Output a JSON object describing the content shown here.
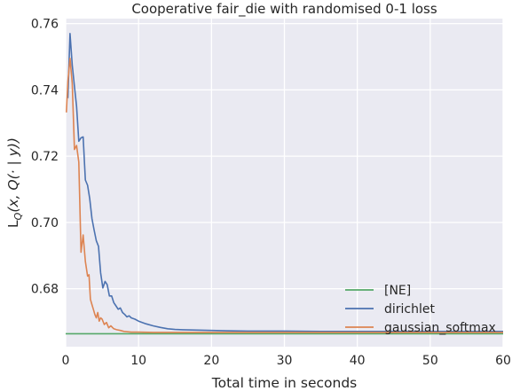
{
  "chart_data": {
    "type": "line",
    "title": "Cooperative fair_die with randomised 0-1 loss",
    "xlabel": "Total time in seconds",
    "ylabel": "L_Q(x, Q(· | y))",
    "xlim": [
      0,
      60
    ],
    "ylim": [
      0.6625,
      0.7615
    ],
    "x_ticks": [
      0,
      10,
      20,
      30,
      40,
      50,
      60
    ],
    "y_ticks": [
      0.68,
      0.7,
      0.72,
      0.74,
      0.76
    ],
    "x_tick_labels": [
      "0",
      "10",
      "20",
      "30",
      "40",
      "50",
      "60"
    ],
    "y_tick_labels": [
      "0.68",
      "0.70",
      "0.72",
      "0.74",
      "0.76"
    ],
    "grid": true,
    "legend_position": "bottom-right",
    "series": [
      {
        "name": "[NE]",
        "color": "#55a868",
        "x": [
          0,
          60
        ],
        "y": [
          0.6664,
          0.6664
        ]
      },
      {
        "name": "dirichlet",
        "color": "#4c72b0",
        "x": [
          0.3,
          0.6,
          0.9,
          1.2,
          1.5,
          1.8,
          2.1,
          2.4,
          2.7,
          3.0,
          3.3,
          3.6,
          3.9,
          4.2,
          4.5,
          4.8,
          5.1,
          5.4,
          5.7,
          6.0,
          6.3,
          6.6,
          6.9,
          7.2,
          7.5,
          7.8,
          8.1,
          8.4,
          8.7,
          9.0,
          9.5,
          10,
          11,
          12,
          13,
          14,
          15,
          16,
          18,
          20,
          22,
          25,
          30,
          35,
          40,
          45,
          50,
          55,
          60
        ],
        "y": [
          0.7375,
          0.757,
          0.7475,
          0.741,
          0.735,
          0.7245,
          0.7255,
          0.7258,
          0.7128,
          0.7112,
          0.7072,
          0.7012,
          0.6978,
          0.6945,
          0.6928,
          0.6848,
          0.6802,
          0.6822,
          0.6812,
          0.6778,
          0.6778,
          0.6758,
          0.6748,
          0.6738,
          0.6742,
          0.6728,
          0.6722,
          0.6715,
          0.6718,
          0.6712,
          0.6708,
          0.6702,
          0.6694,
          0.6688,
          0.6683,
          0.6679,
          0.6677,
          0.6676,
          0.6675,
          0.6674,
          0.6673,
          0.6672,
          0.6672,
          0.6671,
          0.6671,
          0.6671,
          0.6671,
          0.6671,
          0.6671
        ]
      },
      {
        "name": "gaussian_softmax",
        "color": "#dd8452",
        "x": [
          0.1,
          0.3,
          0.6,
          0.9,
          1.2,
          1.5,
          1.8,
          2.1,
          2.4,
          2.7,
          3.0,
          3.2,
          3.4,
          3.6,
          3.8,
          4.0,
          4.2,
          4.4,
          4.6,
          4.8,
          5.0,
          5.3,
          5.6,
          5.9,
          6.2,
          6.6,
          7.0,
          7.5,
          8.0,
          8.5,
          9.0,
          10,
          12,
          15,
          20,
          30,
          40,
          50,
          60
        ],
        "y": [
          0.7332,
          0.7425,
          0.7495,
          0.742,
          0.722,
          0.7232,
          0.7182,
          0.691,
          0.6962,
          0.6882,
          0.6838,
          0.6842,
          0.6768,
          0.6752,
          0.6738,
          0.6722,
          0.6712,
          0.6728,
          0.6702,
          0.6712,
          0.6708,
          0.6692,
          0.6698,
          0.6682,
          0.6688,
          0.6679,
          0.6676,
          0.6674,
          0.6671,
          0.667,
          0.6669,
          0.6669,
          0.6668,
          0.6668,
          0.6668,
          0.6668,
          0.6668,
          0.6668,
          0.6668
        ]
      }
    ]
  }
}
